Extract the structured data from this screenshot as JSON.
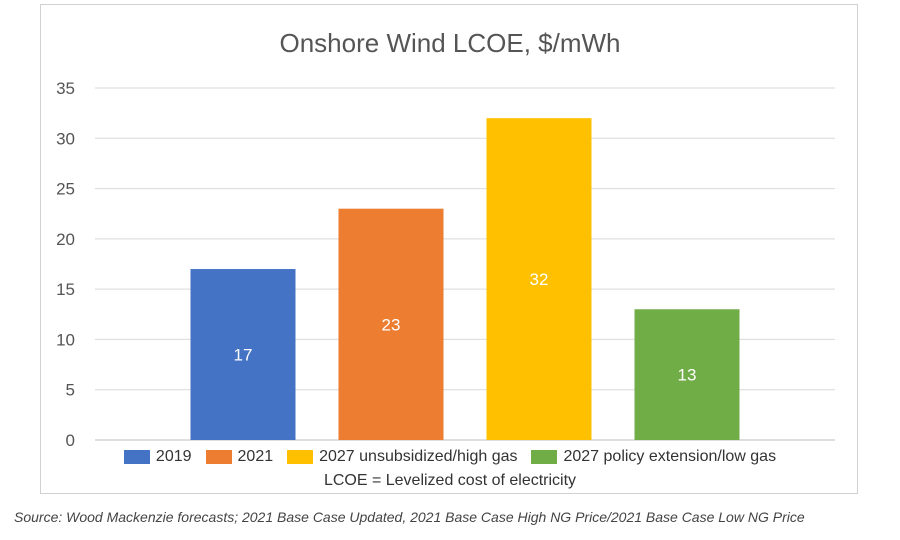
{
  "chart_data": {
    "type": "bar",
    "title": "Onshore Wind LCOE, $/mWh",
    "xlabel": "",
    "ylabel": "",
    "ylim": [
      0,
      35
    ],
    "yticks": [
      0,
      5,
      10,
      15,
      20,
      25,
      30,
      35
    ],
    "grid": true,
    "legend_placement": "bottom",
    "categories": [
      "2019",
      "2021",
      "2027 unsubsidized/high gas",
      "2027 policy extension/low gas"
    ],
    "values": [
      17,
      23,
      32,
      13
    ],
    "colors": [
      "#4472c4",
      "#ed7d31",
      "#ffc000",
      "#70ad47"
    ],
    "data_labels": [
      "17",
      "23",
      "32",
      "13"
    ],
    "note": "LCOE = Levelized cost of electricity"
  },
  "source": "Source: Wood Mackenzie forecasts; 2021 Base Case Updated, 2021 Base Case High NG Price/2021 Base Case Low NG Price"
}
